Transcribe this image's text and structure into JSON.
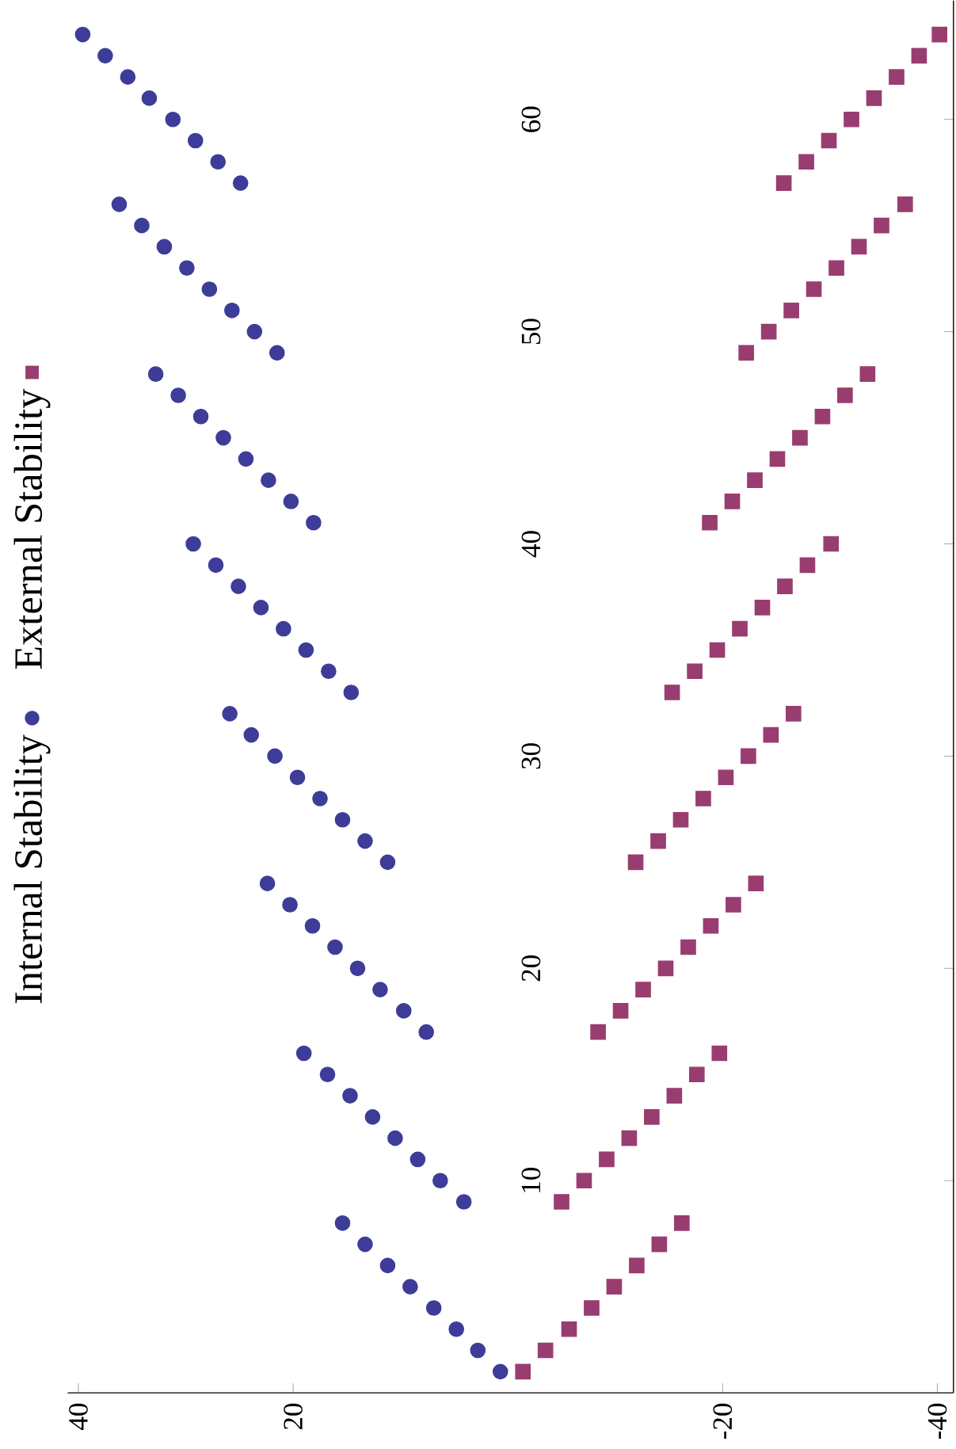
{
  "chart_data": {
    "type": "scatter",
    "series": [
      {
        "name": "Internal Stability",
        "color": "#3d3d99",
        "marker": "circle",
        "x": [
          0.7,
          2.8,
          4.8,
          6.9,
          9.1,
          11.2,
          13.3,
          15.4,
          4.1,
          6.3,
          8.4,
          10.5,
          12.6,
          14.7,
          16.8,
          19.0,
          7.6,
          9.7,
          11.9,
          14.0,
          16.1,
          18.2,
          20.3,
          22.4,
          11.2,
          13.3,
          15.4,
          17.5,
          19.6,
          21.7,
          23.9,
          25.9,
          14.6,
          16.7,
          18.8,
          20.9,
          23.0,
          25.1,
          27.2,
          29.3,
          18.1,
          20.2,
          22.3,
          24.4,
          26.5,
          28.6,
          30.7,
          32.8,
          21.5,
          23.6,
          25.7,
          27.8,
          29.9,
          32.0,
          34.1,
          36.2,
          24.9,
          27.0,
          29.1,
          31.2,
          33.4,
          35.4,
          37.5,
          39.6
        ],
        "values": [
          1,
          2,
          3,
          4,
          5,
          6,
          7,
          8,
          9,
          10,
          11,
          12,
          13,
          14,
          15,
          16,
          17,
          18,
          19,
          20,
          21,
          22,
          23,
          24,
          25,
          26,
          27,
          28,
          29,
          30,
          31,
          32,
          33,
          34,
          35,
          36,
          37,
          38,
          39,
          40,
          41,
          42,
          43,
          44,
          45,
          46,
          47,
          48,
          49,
          50,
          51,
          52,
          53,
          54,
          55,
          56,
          57,
          58,
          59,
          60,
          61,
          62,
          63,
          64
        ]
      },
      {
        "name": "External Stability",
        "color": "#993d70",
        "marker": "square",
        "x": [
          -1.4,
          -3.5,
          -5.7,
          -7.8,
          -9.9,
          -12.0,
          -14.1,
          -16.2,
          -5.0,
          -7.1,
          -9.2,
          -11.3,
          -13.4,
          -15.5,
          -17.6,
          -19.7,
          -8.4,
          -10.5,
          -12.6,
          -14.7,
          -16.8,
          -18.9,
          -21.0,
          -23.1,
          -11.9,
          -14.0,
          -16.1,
          -18.2,
          -20.3,
          -22.4,
          -24.5,
          -26.6,
          -15.3,
          -17.4,
          -19.5,
          -21.6,
          -23.7,
          -25.8,
          -27.9,
          -30.1,
          -18.8,
          -20.9,
          -23.0,
          -25.1,
          -27.2,
          -29.3,
          -31.4,
          -33.5,
          -22.2,
          -24.3,
          -26.4,
          -28.5,
          -30.6,
          -32.7,
          -34.8,
          -37.0,
          -25.7,
          -27.8,
          -29.9,
          -32.0,
          -34.1,
          -36.2,
          -38.3,
          -40.2
        ],
        "values": [
          1,
          2,
          3,
          4,
          5,
          6,
          7,
          8,
          9,
          10,
          11,
          12,
          13,
          14,
          15,
          16,
          17,
          18,
          19,
          20,
          21,
          22,
          23,
          24,
          25,
          26,
          27,
          28,
          29,
          30,
          31,
          32,
          33,
          34,
          35,
          36,
          37,
          38,
          39,
          40,
          41,
          42,
          43,
          44,
          45,
          46,
          47,
          48,
          49,
          50,
          51,
          52,
          53,
          54,
          55,
          56,
          57,
          58,
          59,
          60,
          61,
          62,
          63,
          64
        ]
      }
    ],
    "xlim": [
      41,
      -41.5
    ],
    "ylim": [
      0,
      65.6
    ],
    "xticks": [
      40,
      20,
      -20,
      -40
    ],
    "yticks": [
      10,
      20,
      30,
      40,
      50,
      60
    ],
    "legend": "left"
  }
}
